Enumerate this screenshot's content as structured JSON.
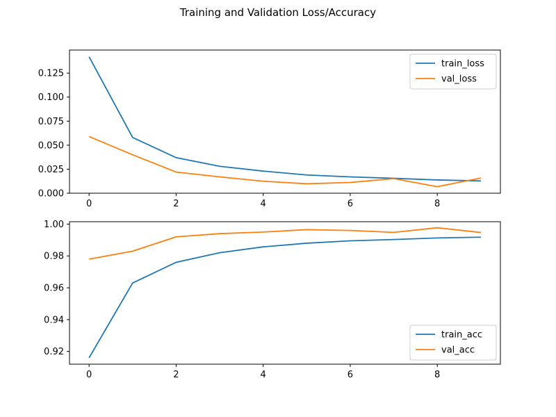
{
  "figure": {
    "title": "Training and Validation Loss/Accuracy"
  },
  "chart_data": [
    {
      "type": "line",
      "x": [
        0,
        1,
        2,
        3,
        4,
        5,
        6,
        7,
        8,
        9
      ],
      "xlim": [
        -0.45,
        9.45
      ],
      "ylim": [
        0.0,
        0.149
      ],
      "xticks": [
        0,
        2,
        4,
        6,
        8
      ],
      "yticks": [
        0.0,
        0.025,
        0.05,
        0.075,
        0.1,
        0.125
      ],
      "xtick_labels": [
        "0",
        "2",
        "4",
        "6",
        "8"
      ],
      "ytick_labels": [
        "0.000",
        "0.025",
        "0.050",
        "0.075",
        "0.100",
        "0.125"
      ],
      "grid": false,
      "legend": "upper right",
      "series": [
        {
          "name": "train_loss",
          "color": "#1f77b4",
          "values": [
            0.142,
            0.058,
            0.037,
            0.028,
            0.023,
            0.019,
            0.017,
            0.0155,
            0.0138,
            0.0128
          ]
        },
        {
          "name": "val_loss",
          "color": "#ff7f0e",
          "values": [
            0.059,
            0.04,
            0.022,
            0.017,
            0.0125,
            0.0098,
            0.0112,
            0.0152,
            0.0068,
            0.0158
          ]
        }
      ]
    },
    {
      "type": "line",
      "x": [
        0,
        1,
        2,
        3,
        4,
        5,
        6,
        7,
        8,
        9
      ],
      "xlim": [
        -0.45,
        9.45
      ],
      "ylim": [
        0.912,
        1.0015
      ],
      "xticks": [
        0,
        2,
        4,
        6,
        8
      ],
      "yticks": [
        0.92,
        0.94,
        0.96,
        0.98,
        1.0
      ],
      "xtick_labels": [
        "0",
        "2",
        "4",
        "6",
        "8"
      ],
      "ytick_labels": [
        "0.92",
        "0.94",
        "0.96",
        "0.98",
        "1.00"
      ],
      "grid": false,
      "legend": "lower right",
      "series": [
        {
          "name": "train_acc",
          "color": "#1f77b4",
          "values": [
            0.916,
            0.963,
            0.976,
            0.982,
            0.9857,
            0.988,
            0.9895,
            0.9903,
            0.9913,
            0.9918
          ]
        },
        {
          "name": "val_acc",
          "color": "#ff7f0e",
          "values": [
            0.978,
            0.983,
            0.992,
            0.994,
            0.995,
            0.9965,
            0.996,
            0.9948,
            0.9977,
            0.9947
          ]
        }
      ]
    }
  ]
}
